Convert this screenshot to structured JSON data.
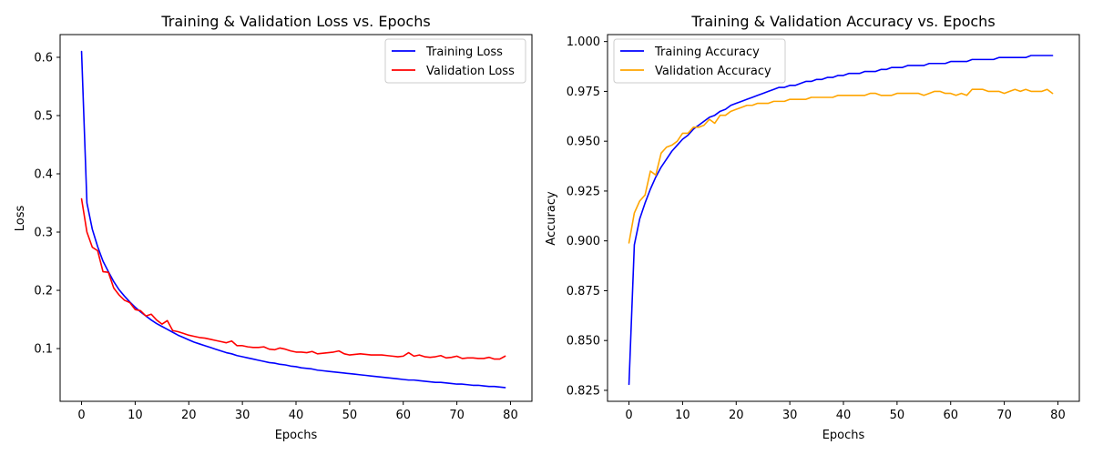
{
  "charts": [
    {
      "title": "Training & Validation Loss vs. Epochs",
      "xlabel": "Epochs",
      "ylabel": "Loss",
      "xticks": [
        "0",
        "10",
        "20",
        "30",
        "40",
        "50",
        "60",
        "70",
        "80"
      ],
      "yticks": [
        "0.1",
        "0.2",
        "0.3",
        "0.4",
        "0.5",
        "0.6"
      ],
      "legend": [
        "Training Loss",
        "Validation Loss"
      ]
    },
    {
      "title": "Training & Validation Accuracy vs. Epochs",
      "xlabel": "Epochs",
      "ylabel": "Accuracy",
      "xticks": [
        "0",
        "10",
        "20",
        "30",
        "40",
        "50",
        "60",
        "70",
        "80"
      ],
      "yticks": [
        "0.825",
        "0.850",
        "0.875",
        "0.900",
        "0.925",
        "0.950",
        "0.975",
        "1.000"
      ],
      "legend": [
        "Training Accuracy",
        "Validation Accuracy"
      ]
    }
  ],
  "chart_data": [
    {
      "type": "line",
      "title": "Training & Validation Loss vs. Epochs",
      "xlabel": "Epochs",
      "ylabel": "Loss",
      "xlim": [
        -4,
        84
      ],
      "ylim": [
        0.0095,
        0.639
      ],
      "legend_position": "top-right",
      "x": [
        0,
        1,
        2,
        3,
        4,
        5,
        6,
        7,
        8,
        9,
        10,
        11,
        12,
        13,
        14,
        15,
        16,
        17,
        18,
        19,
        20,
        21,
        22,
        23,
        24,
        25,
        26,
        27,
        28,
        29,
        30,
        31,
        32,
        33,
        34,
        35,
        36,
        37,
        38,
        39,
        40,
        41,
        42,
        43,
        44,
        45,
        46,
        47,
        48,
        49,
        50,
        51,
        52,
        53,
        54,
        55,
        56,
        57,
        58,
        59,
        60,
        61,
        62,
        63,
        64,
        65,
        66,
        67,
        68,
        69,
        70,
        71,
        72,
        73,
        74,
        75,
        76,
        77,
        78,
        79
      ],
      "series": [
        {
          "name": "Training Loss",
          "color": "#0000ff",
          "values": [
            0.61,
            0.35,
            0.305,
            0.275,
            0.25,
            0.232,
            0.215,
            0.201,
            0.19,
            0.18,
            0.171,
            0.163,
            0.156,
            0.149,
            0.143,
            0.138,
            0.133,
            0.128,
            0.123,
            0.119,
            0.115,
            0.111,
            0.108,
            0.105,
            0.102,
            0.099,
            0.096,
            0.093,
            0.091,
            0.088,
            0.086,
            0.084,
            0.082,
            0.08,
            0.078,
            0.076,
            0.075,
            0.073,
            0.072,
            0.07,
            0.069,
            0.067,
            0.066,
            0.065,
            0.063,
            0.062,
            0.061,
            0.06,
            0.059,
            0.058,
            0.057,
            0.056,
            0.055,
            0.054,
            0.053,
            0.052,
            0.051,
            0.05,
            0.049,
            0.048,
            0.047,
            0.046,
            0.046,
            0.045,
            0.044,
            0.043,
            0.042,
            0.042,
            0.041,
            0.04,
            0.039,
            0.039,
            0.038,
            0.037,
            0.037,
            0.036,
            0.035,
            0.035,
            0.034,
            0.033
          ]
        },
        {
          "name": "Validation Loss",
          "color": "#ff0000",
          "values": [
            0.357,
            0.3,
            0.274,
            0.268,
            0.232,
            0.231,
            0.204,
            0.192,
            0.183,
            0.179,
            0.167,
            0.165,
            0.156,
            0.159,
            0.149,
            0.142,
            0.148,
            0.131,
            0.129,
            0.126,
            0.123,
            0.121,
            0.119,
            0.118,
            0.116,
            0.114,
            0.112,
            0.11,
            0.113,
            0.105,
            0.105,
            0.103,
            0.102,
            0.102,
            0.103,
            0.099,
            0.098,
            0.101,
            0.099,
            0.096,
            0.094,
            0.094,
            0.093,
            0.095,
            0.091,
            0.092,
            0.093,
            0.094,
            0.096,
            0.091,
            0.089,
            0.09,
            0.091,
            0.09,
            0.089,
            0.089,
            0.089,
            0.088,
            0.087,
            0.086,
            0.087,
            0.093,
            0.087,
            0.089,
            0.086,
            0.085,
            0.086,
            0.088,
            0.084,
            0.085,
            0.087,
            0.083,
            0.084,
            0.084,
            0.083,
            0.083,
            0.085,
            0.082,
            0.082,
            0.087
          ]
        }
      ]
    },
    {
      "type": "line",
      "title": "Training & Validation Accuracy vs. Epochs",
      "xlabel": "Epochs",
      "ylabel": "Accuracy",
      "xlim": [
        -4,
        84
      ],
      "ylim": [
        0.8195,
        1.0035
      ],
      "legend_position": "top-left",
      "x": [
        0,
        1,
        2,
        3,
        4,
        5,
        6,
        7,
        8,
        9,
        10,
        11,
        12,
        13,
        14,
        15,
        16,
        17,
        18,
        19,
        20,
        21,
        22,
        23,
        24,
        25,
        26,
        27,
        28,
        29,
        30,
        31,
        32,
        33,
        34,
        35,
        36,
        37,
        38,
        39,
        40,
        41,
        42,
        43,
        44,
        45,
        46,
        47,
        48,
        49,
        50,
        51,
        52,
        53,
        54,
        55,
        56,
        57,
        58,
        59,
        60,
        61,
        62,
        63,
        64,
        65,
        66,
        67,
        68,
        69,
        70,
        71,
        72,
        73,
        74,
        75,
        76,
        77,
        78,
        79
      ],
      "series": [
        {
          "name": "Training Accuracy",
          "color": "#0000ff",
          "values": [
            0.828,
            0.898,
            0.911,
            0.919,
            0.926,
            0.932,
            0.937,
            0.941,
            0.945,
            0.948,
            0.951,
            0.953,
            0.956,
            0.958,
            0.96,
            0.962,
            0.963,
            0.965,
            0.966,
            0.968,
            0.969,
            0.97,
            0.971,
            0.972,
            0.973,
            0.974,
            0.975,
            0.976,
            0.977,
            0.977,
            0.978,
            0.978,
            0.979,
            0.98,
            0.98,
            0.981,
            0.981,
            0.982,
            0.982,
            0.983,
            0.983,
            0.984,
            0.984,
            0.984,
            0.985,
            0.985,
            0.985,
            0.986,
            0.986,
            0.987,
            0.987,
            0.987,
            0.988,
            0.988,
            0.988,
            0.988,
            0.989,
            0.989,
            0.989,
            0.989,
            0.99,
            0.99,
            0.99,
            0.99,
            0.991,
            0.991,
            0.991,
            0.991,
            0.991,
            0.992,
            0.992,
            0.992,
            0.992,
            0.992,
            0.992,
            0.993,
            0.993,
            0.993,
            0.993,
            0.993
          ]
        },
        {
          "name": "Validation Accuracy",
          "color": "#ffa500",
          "values": [
            0.899,
            0.914,
            0.92,
            0.923,
            0.935,
            0.933,
            0.944,
            0.947,
            0.948,
            0.95,
            0.954,
            0.954,
            0.957,
            0.957,
            0.958,
            0.961,
            0.959,
            0.963,
            0.963,
            0.965,
            0.966,
            0.967,
            0.968,
            0.968,
            0.969,
            0.969,
            0.969,
            0.97,
            0.97,
            0.97,
            0.971,
            0.971,
            0.971,
            0.971,
            0.972,
            0.972,
            0.972,
            0.972,
            0.972,
            0.973,
            0.973,
            0.973,
            0.973,
            0.973,
            0.973,
            0.974,
            0.974,
            0.973,
            0.973,
            0.973,
            0.974,
            0.974,
            0.974,
            0.974,
            0.974,
            0.973,
            0.974,
            0.975,
            0.975,
            0.974,
            0.974,
            0.973,
            0.974,
            0.973,
            0.976,
            0.976,
            0.976,
            0.975,
            0.975,
            0.975,
            0.974,
            0.975,
            0.976,
            0.975,
            0.976,
            0.975,
            0.975,
            0.975,
            0.976,
            0.974
          ]
        }
      ]
    }
  ]
}
